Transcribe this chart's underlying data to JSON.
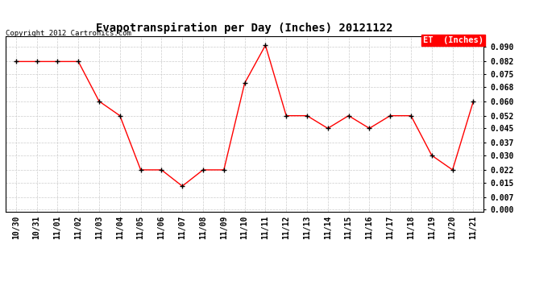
{
  "title": "Evapotranspiration per Day (Inches) 20121122",
  "copyright": "Copyright 2012 Cartronics.com",
  "legend_label": "ET  (Inches)",
  "legend_bg": "#FF0000",
  "legend_text_color": "#FFFFFF",
  "x_labels": [
    "10/30",
    "10/31",
    "11/01",
    "11/02",
    "11/03",
    "11/04",
    "11/05",
    "11/06",
    "11/07",
    "11/08",
    "11/09",
    "11/10",
    "11/11",
    "11/12",
    "11/13",
    "11/14",
    "11/15",
    "11/16",
    "11/17",
    "11/18",
    "11/19",
    "11/20",
    "11/21"
  ],
  "y_values": [
    0.082,
    0.082,
    0.082,
    0.082,
    0.06,
    0.052,
    0.022,
    0.022,
    0.013,
    0.022,
    0.022,
    0.07,
    0.091,
    0.052,
    0.052,
    0.045,
    0.052,
    0.045,
    0.052,
    0.052,
    0.03,
    0.022,
    0.06
  ],
  "y_ticks": [
    0.0,
    0.007,
    0.015,
    0.022,
    0.03,
    0.037,
    0.045,
    0.052,
    0.06,
    0.068,
    0.075,
    0.082,
    0.09
  ],
  "ylim": [
    -0.001,
    0.096
  ],
  "line_color": "#FF0000",
  "marker_color": "#000000",
  "bg_color": "#FFFFFF",
  "grid_color": "#CCCCCC",
  "title_fontsize": 10,
  "tick_fontsize": 7,
  "copyright_fontsize": 6.5
}
